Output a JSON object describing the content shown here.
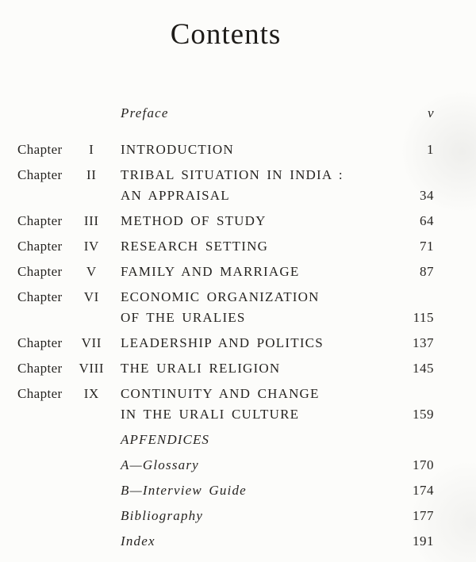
{
  "document": {
    "title": "Contents",
    "chapter_word": "Chapter",
    "preface": {
      "label": "Preface",
      "page": "v"
    },
    "chapters": [
      {
        "numeral": "I",
        "line1": "INTRODUCTION",
        "page": "1"
      },
      {
        "numeral": "II",
        "line1": "TRIBAL SITUATION IN INDIA :",
        "line2": "AN APPRAISAL",
        "page": "34"
      },
      {
        "numeral": "III",
        "line1": "METHOD OF STUDY",
        "page": "64"
      },
      {
        "numeral": "IV",
        "line1": "RESEARCH SETTING",
        "page": "71"
      },
      {
        "numeral": "V",
        "line1": "FAMILY AND MARRIAGE",
        "page": "87"
      },
      {
        "numeral": "VI",
        "line1": "ECONOMIC ORGANIZATION",
        "line2": "OF THE URALIES",
        "page": "115"
      },
      {
        "numeral": "VII",
        "line1": "LEADERSHIP AND POLITICS",
        "page": "137"
      },
      {
        "numeral": "VIII",
        "line1": "THE URALI RELIGION",
        "page": "145"
      },
      {
        "numeral": "IX",
        "line1": "CONTINUITY AND CHANGE",
        "line2": "IN THE URALI CULTURE",
        "page": "159"
      }
    ],
    "appendices_heading": "APFENDICES",
    "back_matter": [
      {
        "label": "A—Glossary",
        "page": "170"
      },
      {
        "label": "B—Interview Guide",
        "page": "174"
      },
      {
        "label": "Bibliography",
        "page": "177"
      },
      {
        "label": "Index",
        "page": "191"
      }
    ],
    "colors": {
      "paper": "#fcfcfa",
      "ink": "#262421"
    }
  }
}
